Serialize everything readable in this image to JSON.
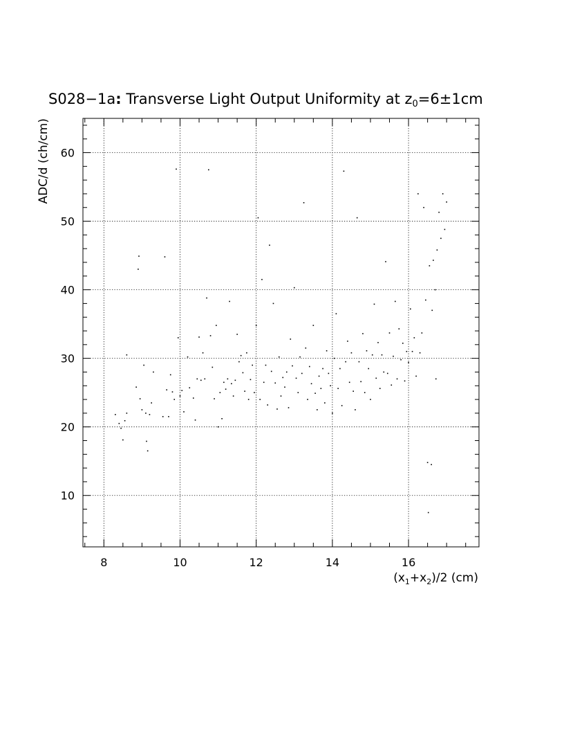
{
  "chart_data": {
    "type": "scatter",
    "title": "S028−1a: Transverse Light Output Uniformity at z₀=6±1cm",
    "title_parts": {
      "prefix": "S028−1a",
      "colon": ":",
      "text": " Transverse Light Output Uniformity at z",
      "sub": "0",
      "suffix": "=6±1cm"
    },
    "xlabel": "(x₁+x₂)/2 (cm)",
    "xlabel_parts": {
      "a": "(x",
      "s1": "1",
      "b": "+x",
      "s2": "2",
      "c": ")/2 (cm)"
    },
    "ylabel": "ADC/d (ch/cm)",
    "xlim": [
      7.45,
      17.85
    ],
    "ylim": [
      2.5,
      65
    ],
    "x_ticks": [
      8,
      10,
      12,
      14,
      16
    ],
    "y_ticks": [
      10,
      20,
      30,
      40,
      50,
      60
    ],
    "x_tick_labels": [
      "8",
      "10",
      "12",
      "14",
      "16"
    ],
    "y_tick_labels": [
      "10",
      "20",
      "30",
      "40",
      "50",
      "60"
    ],
    "grid": true,
    "grid_style": "dotted",
    "point_color": "#000000",
    "points": [
      [
        8.3,
        21.8
      ],
      [
        8.4,
        20.5
      ],
      [
        8.45,
        19.8
      ],
      [
        8.5,
        18.1
      ],
      [
        8.55,
        20.9
      ],
      [
        8.6,
        22.0
      ],
      [
        8.6,
        30.5
      ],
      [
        8.85,
        25.8
      ],
      [
        8.9,
        43.0
      ],
      [
        8.92,
        44.9
      ],
      [
        8.95,
        24.1
      ],
      [
        9.0,
        22.5
      ],
      [
        9.05,
        29.0
      ],
      [
        9.1,
        22.0
      ],
      [
        9.12,
        17.9
      ],
      [
        9.15,
        16.5
      ],
      [
        9.2,
        21.8
      ],
      [
        9.25,
        23.5
      ],
      [
        9.3,
        28.0
      ],
      [
        9.55,
        21.5
      ],
      [
        9.6,
        44.8
      ],
      [
        9.65,
        25.4
      ],
      [
        9.7,
        21.5
      ],
      [
        9.75,
        27.6
      ],
      [
        9.8,
        25.1
      ],
      [
        9.85,
        24.0
      ],
      [
        9.9,
        57.6
      ],
      [
        9.95,
        33.0
      ],
      [
        10.0,
        24.5
      ],
      [
        10.05,
        25.3
      ],
      [
        10.1,
        22.2
      ],
      [
        10.2,
        30.2
      ],
      [
        10.25,
        25.7
      ],
      [
        10.35,
        24.2
      ],
      [
        10.4,
        21.0
      ],
      [
        10.45,
        27.0
      ],
      [
        10.5,
        33.1
      ],
      [
        10.55,
        26.8
      ],
      [
        10.6,
        30.8
      ],
      [
        10.65,
        27.0
      ],
      [
        10.7,
        38.8
      ],
      [
        10.75,
        57.5
      ],
      [
        10.8,
        33.3
      ],
      [
        10.85,
        28.7
      ],
      [
        10.9,
        24.1
      ],
      [
        10.95,
        34.8
      ],
      [
        11.0,
        20.0
      ],
      [
        11.05,
        25.0
      ],
      [
        11.1,
        21.2
      ],
      [
        11.15,
        26.5
      ],
      [
        11.2,
        25.5
      ],
      [
        11.25,
        27.0
      ],
      [
        11.3,
        38.3
      ],
      [
        11.35,
        26.3
      ],
      [
        11.4,
        24.5
      ],
      [
        11.45,
        26.8
      ],
      [
        11.5,
        33.5
      ],
      [
        11.55,
        29.5
      ],
      [
        11.6,
        30.4
      ],
      [
        11.65,
        27.9
      ],
      [
        11.7,
        25.2
      ],
      [
        11.75,
        30.8
      ],
      [
        11.8,
        24.0
      ],
      [
        11.85,
        26.9
      ],
      [
        11.9,
        29.0
      ],
      [
        11.95,
        25.0
      ],
      [
        12.0,
        34.8
      ],
      [
        12.05,
        50.5
      ],
      [
        12.1,
        24.0
      ],
      [
        12.15,
        41.5
      ],
      [
        12.2,
        26.5
      ],
      [
        12.25,
        29.0
      ],
      [
        12.3,
        23.2
      ],
      [
        12.35,
        46.5
      ],
      [
        12.4,
        28.1
      ],
      [
        12.45,
        38.0
      ],
      [
        12.5,
        26.4
      ],
      [
        12.55,
        22.6
      ],
      [
        12.6,
        30.2
      ],
      [
        12.65,
        24.5
      ],
      [
        12.7,
        27.2
      ],
      [
        12.75,
        25.8
      ],
      [
        12.8,
        28.0
      ],
      [
        12.85,
        22.8
      ],
      [
        12.9,
        32.8
      ],
      [
        12.95,
        28.9
      ],
      [
        13.0,
        40.3
      ],
      [
        13.05,
        27.1
      ],
      [
        13.1,
        25.0
      ],
      [
        13.15,
        30.2
      ],
      [
        13.2,
        27.8
      ],
      [
        13.25,
        52.7
      ],
      [
        13.3,
        31.5
      ],
      [
        13.35,
        24.0
      ],
      [
        13.4,
        28.8
      ],
      [
        13.45,
        26.3
      ],
      [
        13.5,
        34.8
      ],
      [
        13.55,
        24.9
      ],
      [
        13.6,
        22.5
      ],
      [
        13.65,
        27.4
      ],
      [
        13.7,
        25.6
      ],
      [
        13.75,
        28.5
      ],
      [
        13.8,
        23.5
      ],
      [
        13.85,
        31.1
      ],
      [
        13.9,
        27.8
      ],
      [
        13.95,
        26.0
      ],
      [
        14.0,
        22.0
      ],
      [
        14.05,
        30.0
      ],
      [
        14.1,
        36.5
      ],
      [
        14.15,
        25.6
      ],
      [
        14.2,
        28.5
      ],
      [
        14.25,
        23.1
      ],
      [
        14.3,
        57.3
      ],
      [
        14.35,
        29.5
      ],
      [
        14.4,
        32.5
      ],
      [
        14.45,
        26.5
      ],
      [
        14.5,
        30.8
      ],
      [
        14.55,
        25.2
      ],
      [
        14.6,
        22.5
      ],
      [
        14.65,
        50.5
      ],
      [
        14.7,
        29.5
      ],
      [
        14.75,
        26.6
      ],
      [
        14.8,
        33.6
      ],
      [
        14.85,
        25.0
      ],
      [
        14.9,
        31.1
      ],
      [
        14.95,
        28.5
      ],
      [
        15.0,
        24.0
      ],
      [
        15.05,
        30.5
      ],
      [
        15.1,
        37.9
      ],
      [
        15.15,
        27.1
      ],
      [
        15.2,
        32.3
      ],
      [
        15.25,
        25.6
      ],
      [
        15.3,
        30.5
      ],
      [
        15.35,
        28.0
      ],
      [
        15.4,
        44.1
      ],
      [
        15.45,
        27.8
      ],
      [
        15.5,
        33.7
      ],
      [
        15.55,
        26.1
      ],
      [
        15.6,
        30.3
      ],
      [
        15.65,
        38.3
      ],
      [
        15.7,
        27.0
      ],
      [
        15.75,
        34.3
      ],
      [
        15.8,
        29.8
      ],
      [
        15.85,
        32.2
      ],
      [
        15.9,
        26.7
      ],
      [
        15.95,
        31.0
      ],
      [
        16.0,
        29.4
      ],
      [
        16.05,
        37.2
      ],
      [
        16.1,
        31.0
      ],
      [
        16.15,
        33.0
      ],
      [
        16.2,
        27.4
      ],
      [
        16.25,
        54.0
      ],
      [
        16.3,
        30.8
      ],
      [
        16.35,
        33.7
      ],
      [
        16.4,
        52.0
      ],
      [
        16.45,
        38.5
      ],
      [
        16.5,
        14.8
      ],
      [
        16.52,
        7.5
      ],
      [
        16.55,
        43.5
      ],
      [
        16.6,
        14.5
      ],
      [
        16.62,
        37.0
      ],
      [
        16.65,
        44.3
      ],
      [
        16.7,
        40.0
      ],
      [
        16.72,
        27.0
      ],
      [
        16.75,
        45.8
      ],
      [
        16.8,
        51.3
      ],
      [
        16.85,
        47.5
      ],
      [
        16.9,
        54.0
      ],
      [
        16.95,
        48.8
      ],
      [
        17.0,
        52.8
      ]
    ]
  }
}
